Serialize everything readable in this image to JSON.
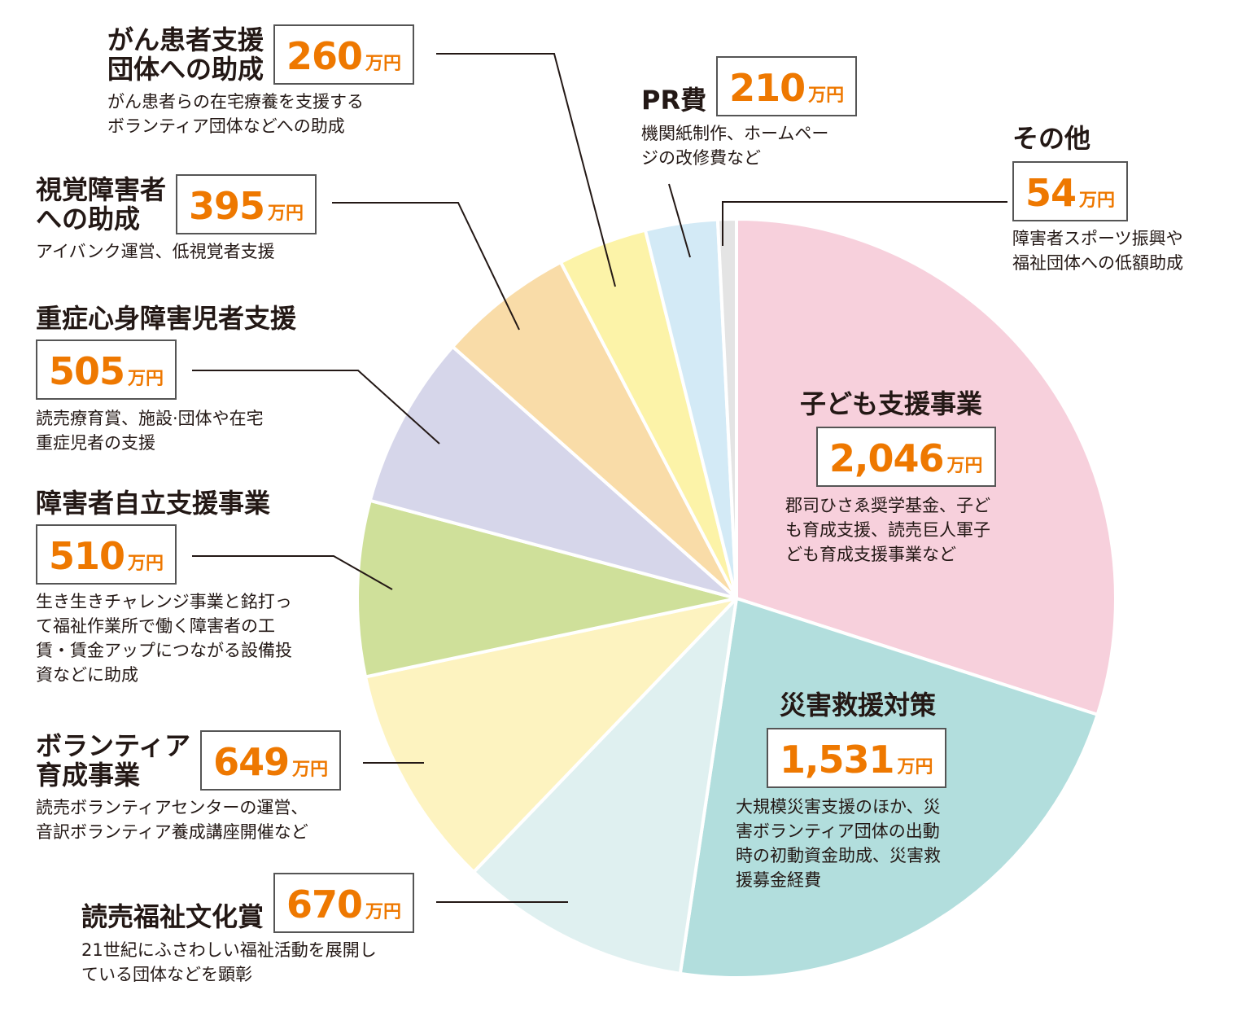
{
  "chart_data": {
    "type": "pie",
    "unit": "万円",
    "slices": [
      {
        "label": "子ども支援事業",
        "value": 2046,
        "value_text": "2,046",
        "description": "郡司ひさゑ奨学基金、子ども育成支援、読売巨人軍子ども育成支援事業など",
        "color": "#f7d0dc"
      },
      {
        "label": "災害救援対策",
        "value": 1531,
        "value_text": "1,531",
        "description": "大規模災害支援のほか、災害ボランティア団体の出動時の初動資金助成、災害救援募金経費",
        "color": "#b2dedd"
      },
      {
        "label": "読売福祉文化賞",
        "value": 670,
        "value_text": "670",
        "description": "21世紀にふさわしい福祉活動を展開している団体などを顕彰",
        "color": "#dff0f0"
      },
      {
        "label": "ボランティア育成事業",
        "value": 649,
        "value_text": "649",
        "description": "読売ボランティアセンターの運営、音訳ボランティア養成講座開催など",
        "color": "#fdf3c0"
      },
      {
        "label": "障害者自立支援事業",
        "value": 510,
        "value_text": "510",
        "description": "生き生きチャレンジ事業と銘打って福祉作業所で働く障害者の工賃・賃金アップにつながる設備投資などに助成",
        "color": "#cfe09a"
      },
      {
        "label": "重症心身障害児者支援",
        "value": 505,
        "value_text": "505",
        "description": "読売療育賞、施設·団体や在宅重症児者の支援",
        "color": "#d6d6ea"
      },
      {
        "label": "視覚障害者への助成",
        "value": 395,
        "value_text": "395",
        "description": "アイバンク運営、低視覚者支援",
        "color": "#f9dca8"
      },
      {
        "label": "がん患者支援団体への助成",
        "value": 260,
        "value_text": "260",
        "description": "がん患者らの在宅療養を支援するボランティア団体などへの助成",
        "color": "#fcf3a8"
      },
      {
        "label": "PR費",
        "value": 210,
        "value_text": "210",
        "description": "機関紙制作、ホームページの改修費など",
        "color": "#d3eaf6"
      },
      {
        "label": "その他",
        "value": 54,
        "value_text": "54",
        "description": "障害者スポーツ振興や福祉団体への低額助成",
        "color": "#e4e4e4"
      }
    ]
  },
  "labels": [
    {
      "title": "子ども支援事業",
      "amount": "2,046",
      "unit": "万円",
      "desc": "郡司ひさゑ奨学基金、子ど\nも育成支援、読売巨人軍子\nども育成支援事業など"
    },
    {
      "title": "災害救援対策",
      "amount": "1,531",
      "unit": "万円",
      "desc": "大規模災害支援のほか、災\n害ボランティア団体の出動\n時の初動資金助成、災害救\n援募金経費"
    },
    {
      "title": "読売福祉文化賞",
      "amount": "670",
      "unit": "万円",
      "desc": "21世紀にふさわしい福祉活動を展開し\nている団体などを顕彰"
    },
    {
      "title": "ボランティア\n育成事業",
      "amount": "649",
      "unit": "万円",
      "desc": "読売ボランティアセンターの運営、\n音訳ボランティア養成講座開催など"
    },
    {
      "title": "障害者自立支援事業",
      "amount": "510",
      "unit": "万円",
      "desc": "生き生きチャレンジ事業と銘打っ\nて福祉作業所で働く障害者の工\n賃・賃金アップにつながる設備投\n資などに助成"
    },
    {
      "title": "重症心身障害児者支援",
      "amount": "505",
      "unit": "万円",
      "desc": "読売療育賞、施設·団体や在宅\n重症児者の支援"
    },
    {
      "title": "視覚障害者\nへの助成",
      "amount": "395",
      "unit": "万円",
      "desc": "アイバンク運営、低視覚者支援"
    },
    {
      "title": "がん患者支援\n団体への助成",
      "amount": "260",
      "unit": "万円",
      "desc": "がん患者らの在宅療養を支援する\nボランティア団体などへの助成"
    },
    {
      "title": "PR費",
      "amount": "210",
      "unit": "万円",
      "desc": "機関紙制作、ホームペー\nジの改修費など"
    },
    {
      "title": "その他",
      "amount": "54",
      "unit": "万円",
      "desc": "障害者スポーツ振興や\n福祉団体への低額助成"
    }
  ]
}
